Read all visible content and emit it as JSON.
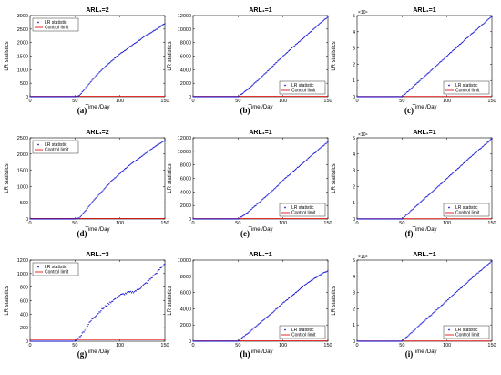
{
  "chart_data": [
    {
      "type": "scatter",
      "panel_label": "(a)",
      "title": "ARL₁=2",
      "xlabel": "Time /Day",
      "ylabel": "LR statistics",
      "xlim": [
        0,
        150
      ],
      "ylim": [
        0,
        3000
      ],
      "xticks": [
        "0",
        "50",
        "100",
        "150"
      ],
      "yticks": [
        "0",
        "500",
        "1000",
        "1500",
        "2000",
        "2500",
        "3000"
      ],
      "y_multiplier": "",
      "legend": [
        "LR statistic",
        "Control limit"
      ],
      "legend_placement": "top-left",
      "control_limit": 15,
      "change_day": 50,
      "series": [
        {
          "name": "LR statistic",
          "x": [
            0,
            50,
            55,
            60,
            70,
            80,
            90,
            100,
            110,
            120,
            130,
            140,
            150
          ],
          "y": [
            0,
            0,
            50,
            250,
            650,
            1000,
            1300,
            1580,
            1820,
            2050,
            2280,
            2480,
            2700
          ]
        }
      ]
    },
    {
      "type": "scatter",
      "panel_label": "(b)",
      "title": "ARL₁=1",
      "xlabel": "Time /Day",
      "ylabel": "LR statistics",
      "xlim": [
        0,
        150
      ],
      "ylim": [
        0,
        12000
      ],
      "xticks": [
        "0",
        "50",
        "100",
        "150"
      ],
      "yticks": [
        "0",
        "2000",
        "4000",
        "6000",
        "8000",
        "10000",
        "12000"
      ],
      "y_multiplier": "",
      "legend": [
        "LR statistic",
        "Control limit"
      ],
      "legend_placement": "bottom-right",
      "control_limit": 60,
      "change_day": 50,
      "series": [
        {
          "name": "LR statistic",
          "x": [
            0,
            50,
            60,
            75,
            90,
            100,
            110,
            125,
            140,
            150
          ],
          "y": [
            0,
            0,
            1000,
            2800,
            4700,
            6000,
            7200,
            8900,
            10700,
            11800
          ]
        }
      ]
    },
    {
      "type": "scatter",
      "panel_label": "(c)",
      "title": "ARL₁=1",
      "xlabel": "Time /Day",
      "ylabel": "LR statistics",
      "xlim": [
        0,
        150
      ],
      "ylim": [
        0,
        5
      ],
      "xticks": [
        "0",
        "50",
        "100",
        "150"
      ],
      "yticks": [
        "0",
        "1",
        "2",
        "3",
        "4",
        "5"
      ],
      "y_multiplier": "×10⁴",
      "legend": [
        "LR statistic",
        "Control limit"
      ],
      "legend_placement": "bottom-right",
      "control_limit": 0.02,
      "change_day": 50,
      "series": [
        {
          "name": "LR statistic",
          "x": [
            0,
            50,
            75,
            100,
            125,
            150
          ],
          "y": [
            0,
            0,
            1.25,
            2.5,
            3.75,
            4.95
          ]
        }
      ]
    },
    {
      "type": "scatter",
      "panel_label": "(d)",
      "title": "ARL₁=2",
      "xlabel": "Time /Day",
      "ylabel": "LR statistics",
      "xlim": [
        0,
        150
      ],
      "ylim": [
        0,
        2500
      ],
      "xticks": [
        "0",
        "50",
        "100",
        "150"
      ],
      "yticks": [
        "0",
        "500",
        "1000",
        "1500",
        "2000",
        "2500"
      ],
      "y_multiplier": "",
      "legend": [
        "LR statistic",
        "Control limit"
      ],
      "legend_placement": "top-left",
      "control_limit": 15,
      "change_day": 50,
      "series": [
        {
          "name": "LR statistic",
          "x": [
            0,
            50,
            55,
            60,
            70,
            80,
            90,
            100,
            110,
            120,
            130,
            140,
            150
          ],
          "y": [
            0,
            0,
            40,
            200,
            550,
            850,
            1150,
            1400,
            1650,
            1850,
            2050,
            2250,
            2420
          ]
        }
      ]
    },
    {
      "type": "scatter",
      "panel_label": "(e)",
      "title": "ARL₁=1",
      "xlabel": "Time /Day",
      "ylabel": "LR statistics",
      "xlim": [
        0,
        150
      ],
      "ylim": [
        0,
        12000
      ],
      "xticks": [
        "0",
        "50",
        "100",
        "150"
      ],
      "yticks": [
        "0",
        "2000",
        "4000",
        "6000",
        "8000",
        "10000",
        "12000"
      ],
      "y_multiplier": "",
      "legend": [
        "LR statistic",
        "Control limit"
      ],
      "legend_placement": "bottom-right",
      "control_limit": 60,
      "change_day": 50,
      "series": [
        {
          "name": "LR statistic",
          "x": [
            0,
            50,
            60,
            75,
            90,
            100,
            110,
            125,
            140,
            150
          ],
          "y": [
            0,
            0,
            900,
            2600,
            4400,
            5700,
            6900,
            8600,
            10300,
            11400
          ]
        }
      ]
    },
    {
      "type": "scatter",
      "panel_label": "(f)",
      "title": "ARL₁=1",
      "xlabel": "Time /Day",
      "ylabel": "LR statistics",
      "xlim": [
        0,
        150
      ],
      "ylim": [
        0,
        5
      ],
      "xticks": [
        "0",
        "50",
        "100",
        "150"
      ],
      "yticks": [
        "0",
        "1",
        "2",
        "3",
        "4",
        "5"
      ],
      "y_multiplier": "×10⁴",
      "legend": [
        "LR statistic",
        "Control limit"
      ],
      "legend_placement": "bottom-right",
      "control_limit": 0.02,
      "change_day": 50,
      "series": [
        {
          "name": "LR statistic",
          "x": [
            0,
            50,
            75,
            100,
            125,
            150
          ],
          "y": [
            0,
            0,
            1.25,
            2.5,
            3.75,
            4.95
          ]
        }
      ]
    },
    {
      "type": "scatter",
      "panel_label": "(g)",
      "title": "ARL₁=3",
      "xlabel": "Time /Day",
      "ylabel": "LR statistics",
      "xlim": [
        0,
        150
      ],
      "ylim": [
        0,
        1200
      ],
      "xticks": [
        "0",
        "50",
        "100",
        "150"
      ],
      "yticks": [
        "0",
        "200",
        "400",
        "600",
        "800",
        "1000",
        "1200"
      ],
      "y_multiplier": "",
      "legend": [
        "LR statistic",
        "Control limit"
      ],
      "legend_placement": "top-left",
      "control_limit": 25,
      "change_day": 50,
      "series": [
        {
          "name": "LR statistic",
          "x": [
            0,
            50,
            55,
            60,
            65,
            70,
            80,
            90,
            100,
            110,
            115,
            120,
            130,
            140,
            150
          ],
          "y": [
            0,
            0,
            60,
            150,
            250,
            340,
            470,
            580,
            680,
            720,
            730,
            760,
            870,
            1000,
            1150
          ]
        }
      ]
    },
    {
      "type": "scatter",
      "panel_label": "(h)",
      "title": "ARL₁=1",
      "xlabel": "Time /Day",
      "ylabel": "LR statistics",
      "xlim": [
        0,
        150
      ],
      "ylim": [
        0,
        10000
      ],
      "xticks": [
        "0",
        "50",
        "100",
        "150"
      ],
      "yticks": [
        "0",
        "2000",
        "4000",
        "6000",
        "8000",
        "10000"
      ],
      "y_multiplier": "",
      "legend": [
        "LR statistic",
        "Control limit"
      ],
      "legend_placement": "bottom-right",
      "control_limit": 50,
      "change_day": 50,
      "series": [
        {
          "name": "LR statistic",
          "x": [
            0,
            50,
            60,
            75,
            90,
            100,
            110,
            125,
            140,
            150
          ],
          "y": [
            0,
            0,
            900,
            2300,
            3700,
            4700,
            5600,
            7000,
            8100,
            8700
          ]
        }
      ]
    },
    {
      "type": "scatter",
      "panel_label": "(i)",
      "title": "ARL₁=1",
      "xlabel": "Time /Day",
      "ylabel": "LR statistics",
      "xlim": [
        0,
        150
      ],
      "ylim": [
        0,
        5
      ],
      "xticks": [
        "0",
        "50",
        "100",
        "150"
      ],
      "yticks": [
        "0",
        "1",
        "2",
        "3",
        "4",
        "5"
      ],
      "y_multiplier": "×10⁴",
      "legend": [
        "LR statistic",
        "Control limit"
      ],
      "legend_placement": "bottom-right",
      "control_limit": 0.02,
      "change_day": 50,
      "series": [
        {
          "name": "LR statistic",
          "x": [
            0,
            50,
            75,
            100,
            125,
            150
          ],
          "y": [
            0,
            0,
            1.25,
            2.5,
            3.75,
            4.95
          ]
        }
      ]
    }
  ],
  "colors": {
    "lr_statistic": "#1f1fd6",
    "control_limit": "#e01010",
    "axis": "#000000"
  }
}
